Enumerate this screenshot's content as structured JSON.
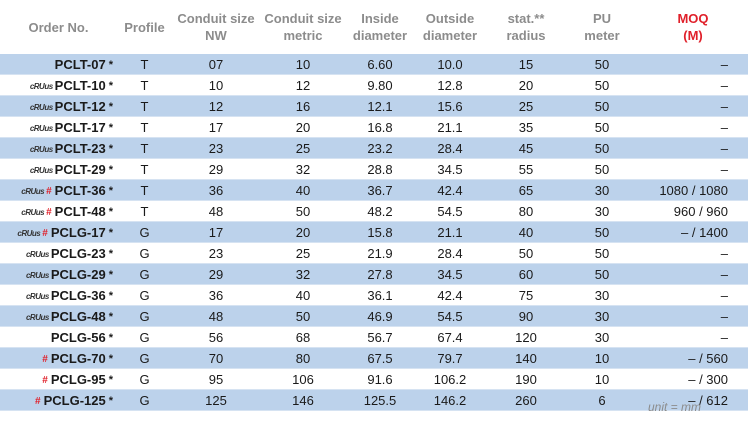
{
  "table": {
    "headers": {
      "order_no": [
        "Order No."
      ],
      "profile": [
        "Profile"
      ],
      "conduit_nw": [
        "Conduit size",
        "NW"
      ],
      "conduit_metric": [
        "Conduit size",
        "metric"
      ],
      "inside": [
        "Inside",
        "diameter"
      ],
      "outside": [
        "Outside",
        "diameter"
      ],
      "radius": [
        "stat.**",
        "radius"
      ],
      "pu": [
        "PU",
        "meter"
      ],
      "moq": [
        "MOQ",
        "(M)"
      ]
    },
    "rows": [
      {
        "order": "PCLT-07",
        "star": "*",
        "cert": "",
        "hash": "",
        "profile": "T",
        "nw": "07",
        "metric": "10",
        "inside": "6.60",
        "outside": "10.0",
        "radius": "15",
        "pu": "50",
        "moq": "–",
        "shaded": true
      },
      {
        "order": "PCLT-10",
        "star": "*",
        "cert": "cRUus",
        "hash": "",
        "profile": "T",
        "nw": "10",
        "metric": "12",
        "inside": "9.80",
        "outside": "12.8",
        "radius": "20",
        "pu": "50",
        "moq": "–",
        "shaded": false
      },
      {
        "order": "PCLT-12",
        "star": "*",
        "cert": "cRUus",
        "hash": "",
        "profile": "T",
        "nw": "12",
        "metric": "16",
        "inside": "12.1",
        "outside": "15.6",
        "radius": "25",
        "pu": "50",
        "moq": "–",
        "shaded": true
      },
      {
        "order": "PCLT-17",
        "star": "*",
        "cert": "cRUus",
        "hash": "",
        "profile": "T",
        "nw": "17",
        "metric": "20",
        "inside": "16.8",
        "outside": "21.1",
        "radius": "35",
        "pu": "50",
        "moq": "–",
        "shaded": false
      },
      {
        "order": "PCLT-23",
        "star": "*",
        "cert": "cRUus",
        "hash": "",
        "profile": "T",
        "nw": "23",
        "metric": "25",
        "inside": "23.2",
        "outside": "28.4",
        "radius": "45",
        "pu": "50",
        "moq": "–",
        "shaded": true
      },
      {
        "order": "PCLT-29",
        "star": "*",
        "cert": "cRUus",
        "hash": "",
        "profile": "T",
        "nw": "29",
        "metric": "32",
        "inside": "28.8",
        "outside": "34.5",
        "radius": "55",
        "pu": "50",
        "moq": "–",
        "shaded": false
      },
      {
        "order": "PCLT-36",
        "star": "*",
        "cert": "cRUus",
        "hash": "#",
        "profile": "T",
        "nw": "36",
        "metric": "40",
        "inside": "36.7",
        "outside": "42.4",
        "radius": "65",
        "pu": "30",
        "moq": "1080 / 1080",
        "shaded": true
      },
      {
        "order": "PCLT-48",
        "star": "*",
        "cert": "cRUus",
        "hash": "#",
        "profile": "T",
        "nw": "48",
        "metric": "50",
        "inside": "48.2",
        "outside": "54.5",
        "radius": "80",
        "pu": "30",
        "moq": "960 /  960",
        "shaded": false
      },
      {
        "order": "PCLG-17",
        "star": "*",
        "cert": "cRUus",
        "hash": "#",
        "profile": "G",
        "nw": "17",
        "metric": "20",
        "inside": "15.8",
        "outside": "21.1",
        "radius": "40",
        "pu": "50",
        "moq": "–   / 1400",
        "shaded": true
      },
      {
        "order": "PCLG-23",
        "star": "*",
        "cert": "cRUus",
        "hash": "",
        "profile": "G",
        "nw": "23",
        "metric": "25",
        "inside": "21.9",
        "outside": "28.4",
        "radius": "50",
        "pu": "50",
        "moq": "–",
        "shaded": false
      },
      {
        "order": "PCLG-29",
        "star": "*",
        "cert": "cRUus",
        "hash": "",
        "profile": "G",
        "nw": "29",
        "metric": "32",
        "inside": "27.8",
        "outside": "34.5",
        "radius": "60",
        "pu": "50",
        "moq": "–",
        "shaded": true
      },
      {
        "order": "PCLG-36",
        "star": "*",
        "cert": "cRUus",
        "hash": "",
        "profile": "G",
        "nw": "36",
        "metric": "40",
        "inside": "36.1",
        "outside": "42.4",
        "radius": "75",
        "pu": "30",
        "moq": "–",
        "shaded": false
      },
      {
        "order": "PCLG-48",
        "star": "*",
        "cert": "cRUus",
        "hash": "",
        "profile": "G",
        "nw": "48",
        "metric": "50",
        "inside": "46.9",
        "outside": "54.5",
        "radius": "90",
        "pu": "30",
        "moq": "–",
        "shaded": true
      },
      {
        "order": "PCLG-56",
        "star": "*",
        "cert": "",
        "hash": "",
        "profile": "G",
        "nw": "56",
        "metric": "68",
        "inside": "56.7",
        "outside": "67.4",
        "radius": "120",
        "pu": "30",
        "moq": "–",
        "shaded": false
      },
      {
        "order": "PCLG-70",
        "star": "*",
        "cert": "",
        "hash": "#",
        "profile": "G",
        "nw": "70",
        "metric": "80",
        "inside": "67.5",
        "outside": "79.7",
        "radius": "140",
        "pu": "10",
        "moq": "–  /  560",
        "shaded": true
      },
      {
        "order": "PCLG-95",
        "star": "*",
        "cert": "",
        "hash": "#",
        "profile": "G",
        "nw": "95",
        "metric": "106",
        "inside": "91.6",
        "outside": "106.2",
        "radius": "190",
        "pu": "10",
        "moq": "–  /  300",
        "shaded": false
      },
      {
        "order": "PCLG-125",
        "star": "*",
        "cert": "",
        "hash": "#",
        "profile": "G",
        "nw": "125",
        "metric": "146",
        "inside": "125.5",
        "outside": "146.2",
        "radius": "260",
        "pu": "6",
        "moq": "–  /  612",
        "shaded": true
      }
    ]
  },
  "footer": {
    "unit_note": "unit = mm"
  }
}
